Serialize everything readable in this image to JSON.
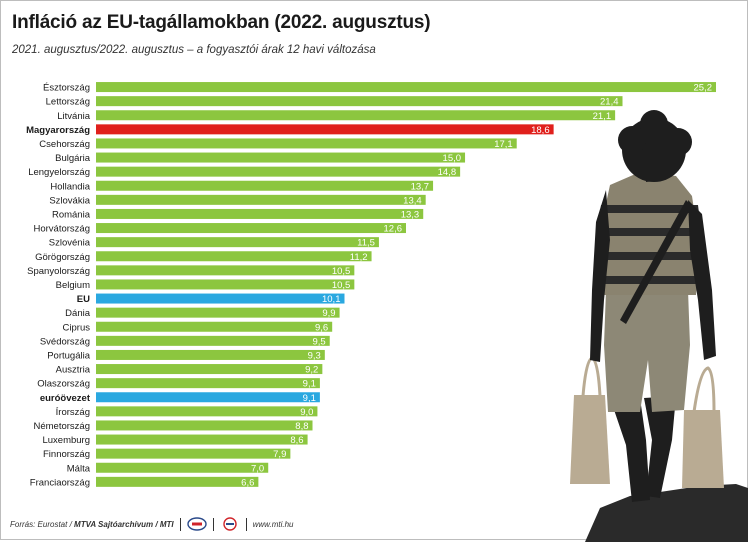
{
  "header": {
    "title": "Infláció az EU-tagállamokban (2022. augusztus)",
    "subtitle": "2021. augusztus/2022. augusztus – a fogyasztói árak 12 havi változása"
  },
  "footer": {
    "source_prefix": "Forrás: Eurostat / ",
    "source_bold": "MTVA Sajtóarchívum / MTI",
    "url": "www.mti.hu"
  },
  "colors": {
    "default": "#8cc63f",
    "hungary": "#e0201c",
    "aggregate": "#2aa8e0"
  },
  "illustration": {
    "icon": "woman-with-shopping-bags-icon"
  },
  "chart_data": {
    "type": "bar",
    "orientation": "horizontal",
    "title": "Infláció az EU-tagállamokban (2022. augusztus)",
    "subtitle": "2021. augusztus/2022. augusztus – a fogyasztói árak 12 havi változása",
    "xlim": [
      0,
      25.2
    ],
    "grid": false,
    "categories": [
      "Észtország",
      "Lettország",
      "Litvánia",
      "Magyarország",
      "Csehország",
      "Bulgária",
      "Lengyelország",
      "Hollandia",
      "Szlovákia",
      "Románia",
      "Horvátország",
      "Szlovénia",
      "Görögország",
      "Spanyolország",
      "Belgium",
      "EU",
      "Dánia",
      "Ciprus",
      "Svédország",
      "Portugália",
      "Ausztria",
      "Olaszország",
      "euróövezet",
      "Írország",
      "Németország",
      "Luxemburg",
      "Finnország",
      "Málta",
      "Franciaország"
    ],
    "values": [
      25.2,
      21.4,
      21.1,
      18.6,
      17.1,
      15.0,
      14.8,
      13.7,
      13.4,
      13.3,
      12.6,
      11.5,
      11.2,
      10.5,
      10.5,
      10.1,
      9.9,
      9.6,
      9.5,
      9.3,
      9.2,
      9.1,
      9.1,
      9.0,
      8.8,
      8.6,
      7.9,
      7.0,
      6.6
    ],
    "labels": [
      "25,2",
      "21,4",
      "21,1",
      "18,6",
      "17,1",
      "15,0",
      "14,8",
      "13,7",
      "13,4",
      "13,3",
      "12,6",
      "11,5",
      "11,2",
      "10,5",
      "10,5",
      "10,1",
      "9,9",
      "9,6",
      "9,5",
      "9,3",
      "9,2",
      "9,1",
      "9,1",
      "9,0",
      "8,8",
      "8,6",
      "7,9",
      "7,0",
      "6,6"
    ],
    "highlight": {
      "Magyarország": "hungary",
      "EU": "aggregate",
      "euróövezet": "aggregate"
    }
  }
}
